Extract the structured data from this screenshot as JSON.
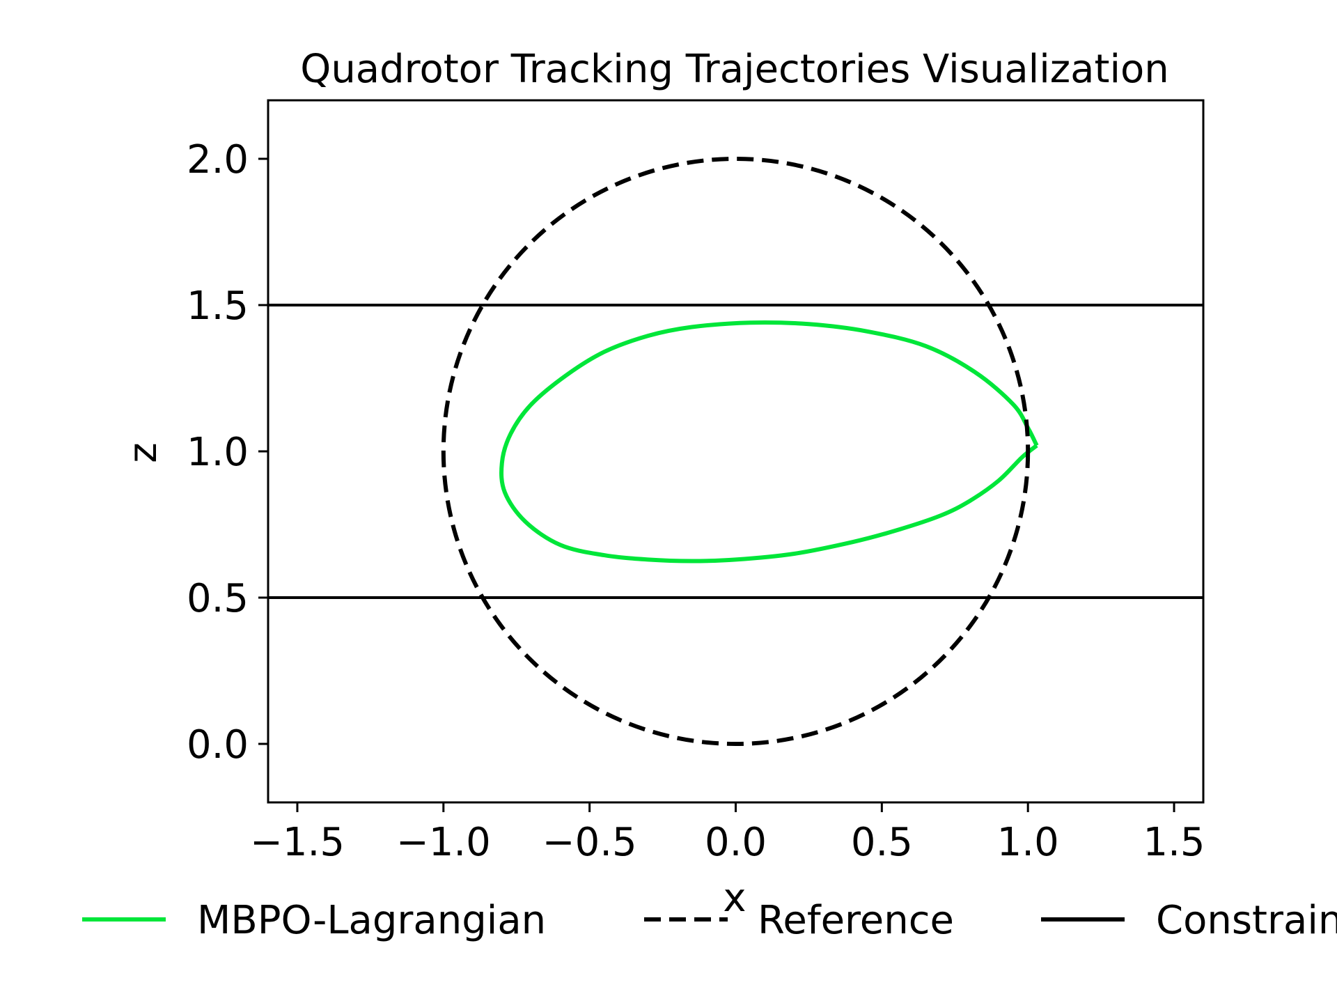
{
  "chart_data": {
    "type": "line",
    "title": "Quadrotor Tracking Trajectories Visualization",
    "xlabel": "x",
    "ylabel": "z",
    "xlim": [
      -1.6,
      1.6
    ],
    "ylim": [
      -0.2,
      2.2
    ],
    "xticks": [
      -1.5,
      -1.0,
      -0.5,
      0.0,
      0.5,
      1.0,
      1.5
    ],
    "xtick_labels": [
      "−1.5",
      "−1.0",
      "−0.5",
      "0.0",
      "0.5",
      "1.0",
      "1.5"
    ],
    "yticks": [
      0.0,
      0.5,
      1.0,
      1.5,
      2.0
    ],
    "ytick_labels": [
      "0.0",
      "0.5",
      "1.0",
      "1.5",
      "2.0"
    ],
    "grid": false,
    "legend_position": "bottom",
    "series": [
      {
        "name": "MBPO-Lagrangian",
        "color": "#00e639",
        "style": "solid",
        "x": [
          1.03,
          0.98,
          0.9,
          0.8,
          0.7,
          0.55,
          0.4,
          0.2,
          0.0,
          -0.15,
          -0.3,
          -0.45,
          -0.6,
          -0.72,
          -0.79,
          -0.8,
          -0.77,
          -0.7,
          -0.58,
          -0.45,
          -0.3,
          -0.15,
          0.05,
          0.25,
          0.45,
          0.65,
          0.82,
          0.95,
          1.0,
          1.03
        ],
        "y": [
          1.02,
          0.98,
          0.9,
          0.83,
          0.78,
          0.73,
          0.69,
          0.65,
          0.63,
          0.625,
          0.63,
          0.645,
          0.68,
          0.76,
          0.86,
          0.96,
          1.06,
          1.16,
          1.26,
          1.34,
          1.395,
          1.425,
          1.44,
          1.435,
          1.41,
          1.36,
          1.27,
          1.16,
          1.08,
          1.02
        ]
      },
      {
        "name": "Reference",
        "color": "#000000",
        "style": "dashed",
        "shape": "circle",
        "center": [
          0.0,
          1.0
        ],
        "radius": 1.0
      },
      {
        "name": "Constraint",
        "color": "#000000",
        "style": "solid",
        "hlines": [
          1.5,
          0.5
        ]
      }
    ]
  }
}
